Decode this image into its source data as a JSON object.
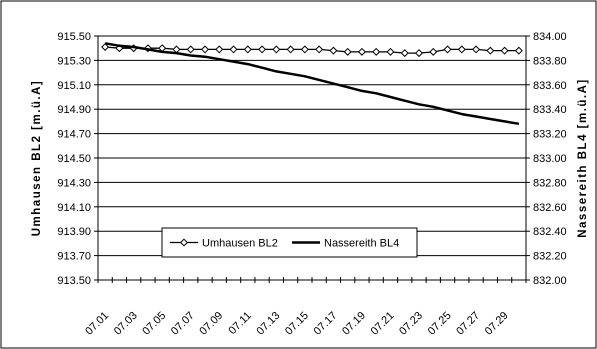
{
  "chart_data": {
    "type": "line",
    "title": "",
    "xlabel": "",
    "ylabel_left": "Umhausen BL2 [m.ü.A]",
    "ylabel_right": "Nassereith BL4 [m.ü.A]",
    "grid": true,
    "legend": {
      "placement": "lower-center"
    },
    "x_tick_labels": [
      "07.01",
      "07.03",
      "07.05",
      "07.07",
      "07.09",
      "07.11",
      "07.13",
      "07.15",
      "07.17",
      "07.19",
      "07.21",
      "07.23",
      "07.25",
      "07.27",
      "07.29"
    ],
    "x": [
      "07.01",
      "07.02",
      "07.03",
      "07.04",
      "07.05",
      "07.06",
      "07.07",
      "07.08",
      "07.09",
      "07.10",
      "07.11",
      "07.12",
      "07.13",
      "07.14",
      "07.15",
      "07.16",
      "07.17",
      "07.18",
      "07.19",
      "07.20",
      "07.21",
      "07.22",
      "07.23",
      "07.24",
      "07.25",
      "07.26",
      "07.27",
      "07.28",
      "07.29",
      "07.30"
    ],
    "y_left": {
      "min": 913.5,
      "max": 915.5,
      "ticks": [
        "915.50",
        "915.30",
        "915.10",
        "914.90",
        "914.70",
        "914.50",
        "914.30",
        "914.10",
        "913.90",
        "913.70",
        "913.50"
      ]
    },
    "y_right": {
      "min": 832.0,
      "max": 834.0,
      "ticks": [
        "834.00",
        "833.80",
        "833.60",
        "833.40",
        "833.20",
        "833.00",
        "832.80",
        "832.60",
        "832.40",
        "832.20",
        "832.00"
      ]
    },
    "series": [
      {
        "name": "Umhausen BL2",
        "axis": "left",
        "marker": "diamond",
        "color": "#000000",
        "values": [
          915.41,
          915.4,
          915.4,
          915.4,
          915.4,
          915.39,
          915.39,
          915.39,
          915.39,
          915.39,
          915.39,
          915.39,
          915.39,
          915.39,
          915.39,
          915.39,
          915.38,
          915.37,
          915.37,
          915.37,
          915.37,
          915.36,
          915.36,
          915.37,
          915.39,
          915.39,
          915.39,
          915.38,
          915.38,
          915.38
        ]
      },
      {
        "name": "Nassereith BL4",
        "axis": "right",
        "marker": "none",
        "color": "#000000",
        "values": [
          833.94,
          833.92,
          833.91,
          833.89,
          833.87,
          833.86,
          833.84,
          833.83,
          833.81,
          833.79,
          833.77,
          833.74,
          833.71,
          833.69,
          833.67,
          833.64,
          833.61,
          833.58,
          833.55,
          833.53,
          833.5,
          833.47,
          833.44,
          833.42,
          833.39,
          833.36,
          833.34,
          833.32,
          833.3,
          833.28
        ]
      }
    ]
  }
}
